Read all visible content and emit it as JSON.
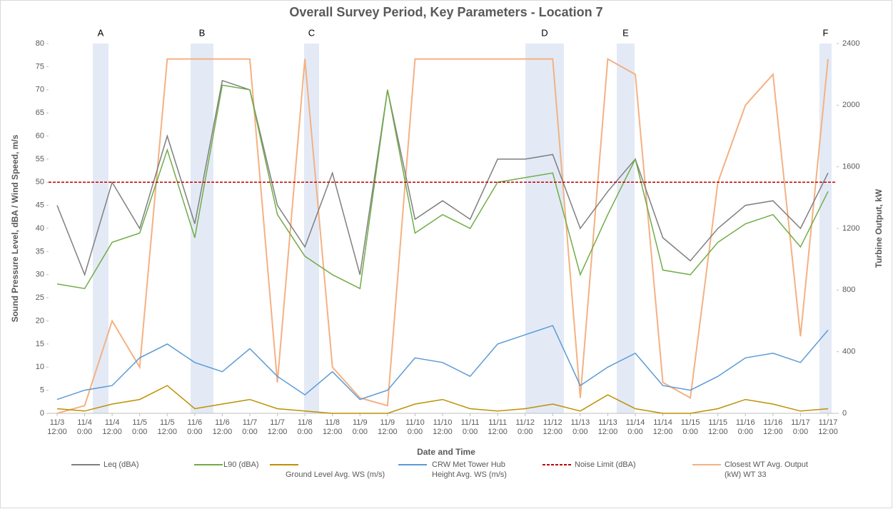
{
  "chart_data": {
    "type": "line",
    "title": "Overall Survey Period, Key Parameters - Location 7",
    "x_label": "Date and Time",
    "y_label": "Sound Pressure Level, dBA / Wind Speed, m/s",
    "y2_label": "Turbine Output, kW",
    "annotations": [
      "A",
      "B",
      "C",
      "D",
      "E",
      "F"
    ],
    "categories": [
      "11/3 12:00",
      "11/4 0:00",
      "11/4 12:00",
      "11/5 0:00",
      "11/5 12:00",
      "11/6 0:00",
      "11/6 12:00",
      "11/7 0:00",
      "11/7 12:00",
      "11/8 0:00",
      "11/8 12:00",
      "11/9 0:00",
      "11/9 12:00",
      "11/10 0:00",
      "11/10 12:00",
      "11/11 0:00",
      "11/11 12:00",
      "11/12 0:00",
      "11/12 12:00",
      "11/13 0:00",
      "11/13 12:00",
      "11/14 0:00",
      "11/14 12:00",
      "11/15 0:00",
      "11/15 12:00",
      "11/16 0:00",
      "11/16 12:00",
      "11/17 0:00",
      "11/17 12:00"
    ],
    "ylim": [
      0,
      80
    ],
    "yticks": [
      0,
      5,
      10,
      15,
      20,
      25,
      30,
      35,
      40,
      45,
      50,
      55,
      60,
      65,
      70,
      75,
      80
    ],
    "y2lim": [
      0,
      2400
    ],
    "y2ticks": [
      0,
      400,
      800,
      1200,
      1600,
      2000,
      2400
    ],
    "series": [
      {
        "name": "Closest WT Avg. Output (kW) WT 33",
        "color": "#f4b183",
        "axis": "y2",
        "values": [
          0,
          50,
          600,
          300,
          2300,
          2300,
          2300,
          2300,
          200,
          2300,
          300,
          100,
          50,
          2300,
          2300,
          2300,
          2300,
          2300,
          2300,
          100,
          2300,
          2200,
          200,
          100,
          1500,
          2000,
          2200,
          500,
          2300
        ]
      },
      {
        "name": "Leq (dBA)",
        "color": "#7f7f7f",
        "values": [
          45,
          30,
          50,
          40,
          60,
          41,
          72,
          70,
          45,
          36,
          52,
          30,
          70,
          42,
          46,
          42,
          55,
          55,
          56,
          40,
          48,
          55,
          38,
          33,
          40,
          45,
          46,
          40,
          52
        ]
      },
      {
        "name": "L90 (dBA)",
        "color": "#70ad47",
        "values": [
          28,
          27,
          37,
          39,
          57,
          38,
          71,
          70,
          43,
          34,
          30,
          27,
          70,
          39,
          43,
          40,
          50,
          51,
          52,
          30,
          43,
          55,
          31,
          30,
          37,
          41,
          43,
          36,
          48
        ]
      },
      {
        "name": "Ground Level Avg. WS (m/s)",
        "color": "#bf9000",
        "values": [
          1,
          0.5,
          2,
          3,
          6,
          1,
          2,
          3,
          1,
          0.5,
          0,
          0,
          0,
          2,
          3,
          1,
          0.5,
          1,
          2,
          0.5,
          4,
          1,
          0,
          0,
          1,
          3,
          2,
          0.5,
          1
        ]
      },
      {
        "name": "CRW Met Tower Hub Height Avg. WS (m/s)",
        "color": "#5b9bd5",
        "values": [
          3,
          5,
          6,
          12,
          15,
          11,
          9,
          14,
          8,
          4,
          9,
          3,
          5,
          12,
          11,
          8,
          15,
          17,
          19,
          6,
          10,
          13,
          6,
          5,
          8,
          12,
          13,
          11,
          18
        ]
      }
    ],
    "reference_line": {
      "name": "Noise Limit (dBA)",
      "value": 50,
      "color": "#c00000"
    }
  }
}
